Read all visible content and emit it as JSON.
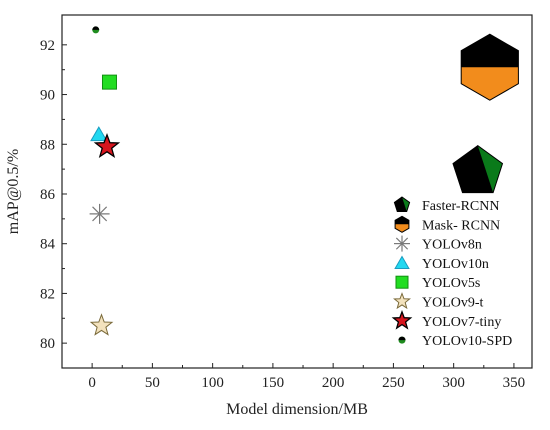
{
  "chart_data": {
    "type": "scatter",
    "xlabel": "Model dimension/MB",
    "ylabel": "mAP@0.5/%",
    "xlim": [
      -25,
      365
    ],
    "ylim": [
      79,
      93.2
    ],
    "xticks": [
      0,
      50,
      100,
      150,
      200,
      250,
      300,
      350
    ],
    "yticks": [
      80,
      82,
      84,
      86,
      88,
      90,
      92
    ],
    "grid": false,
    "legend_position": "bottom-right",
    "series": [
      {
        "name": "Faster-RCNN",
        "marker": "pentagon",
        "color": "#0a7a1a",
        "x": [
          320
        ],
        "y": [
          86.9
        ]
      },
      {
        "name": "Mask- RCNN",
        "marker": "hexagon",
        "color": "#f28c1c",
        "x": [
          330
        ],
        "y": [
          91.1
        ]
      },
      {
        "name": "YOLOv8n",
        "marker": "asterisk",
        "color": "#7a7a7a",
        "x": [
          6.2
        ],
        "y": [
          85.2
        ]
      },
      {
        "name": "YOLOv10n",
        "marker": "triangle",
        "color": "#22d8f0",
        "x": [
          5.5
        ],
        "y": [
          88.4
        ]
      },
      {
        "name": "YOLOv5s",
        "marker": "square",
        "color": "#22dd22",
        "x": [
          14.4
        ],
        "y": [
          90.5
        ]
      },
      {
        "name": "YOLOv9-t",
        "marker": "star-outline",
        "color": "#c9a55a",
        "x": [
          7.8
        ],
        "y": [
          80.7
        ]
      },
      {
        "name": "YOLOv7-tiny",
        "marker": "star",
        "color": "#d6151e",
        "x": [
          12.3
        ],
        "y": [
          87.9
        ]
      },
      {
        "name": "YOLOv10-SPD",
        "marker": "circle",
        "color": "#1f8c1f",
        "x": [
          3.0
        ],
        "y": [
          92.6
        ]
      }
    ]
  }
}
